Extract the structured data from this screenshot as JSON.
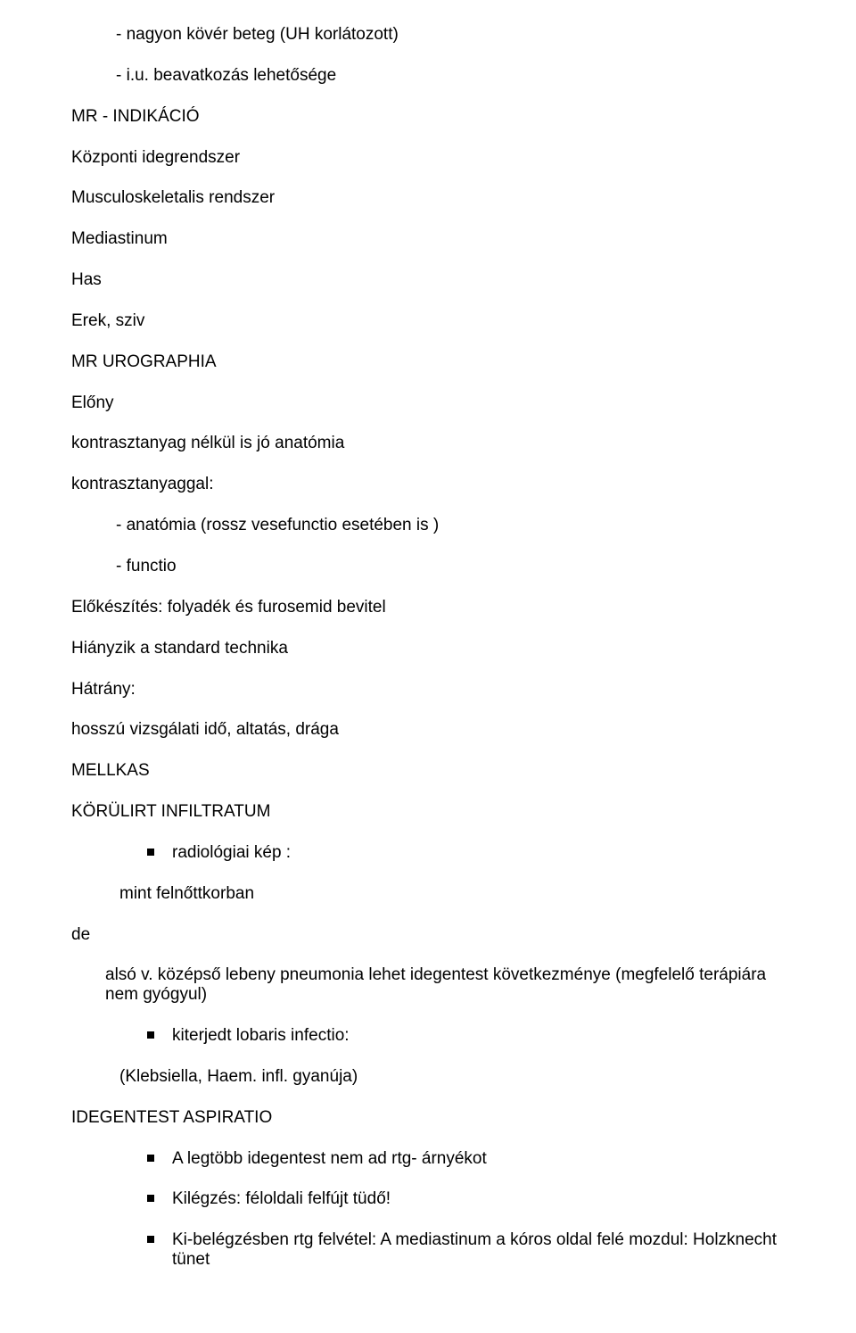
{
  "text_color": "#000000",
  "background_color": "#ffffff",
  "font_family": "Arial",
  "font_size_pt": 14,
  "lines": {
    "l1": "- nagyon kövér beteg (UH korlátozott)",
    "l2": "- i.u. beavatkozás lehetősége",
    "l3": "MR -  INDIKÁCIÓ",
    "l4": "Központi idegrendszer",
    "l5": "Musculoskeletalis rendszer",
    "l6": "Mediastinum",
    "l7": "Has",
    "l8": "Erek, sziv",
    "l9": "MR UROGRAPHIA",
    "l10": "Előny",
    "l11": "kontrasztanyag nélkül is jó anatómia",
    "l12": "kontrasztanyaggal:",
    "l13": "- anatómia (rossz vesefunctio esetében is )",
    "l14": "- functio",
    "l15": "Előkészítés: folyadék és furosemid bevitel",
    "l16": "Hiányzik a standard technika",
    "l17": "Hátrány:",
    "l18": "hosszú vizsgálati idő, altatás, drága",
    "l19": "MELLKAS",
    "l20": "KÖRÜLIRT INFILTRATUM",
    "b1": "radiológiai  kép :",
    "mint": "mint felnőttkorban",
    "de": "de",
    "also": "alsó v. középső lebeny  pneumonia lehet idegentest következménye (megfelelő terápiára nem gyógyul)",
    "b2": "kiterjedt lobaris infectio:",
    "klebs": "(Klebsiella, Haem. infl. gyanúja)",
    "l21": "IDEGENTEST ASPIRATIO",
    "b3": "A legtöbb idegentest nem ad rtg- árnyékot",
    "b4": "Kilégzés: féloldali felfújt tüdő!",
    "b5": "Ki-belégzésben rtg felvétel: A mediastinum a kóros oldal felé mozdul: Holzknecht tünet"
  }
}
